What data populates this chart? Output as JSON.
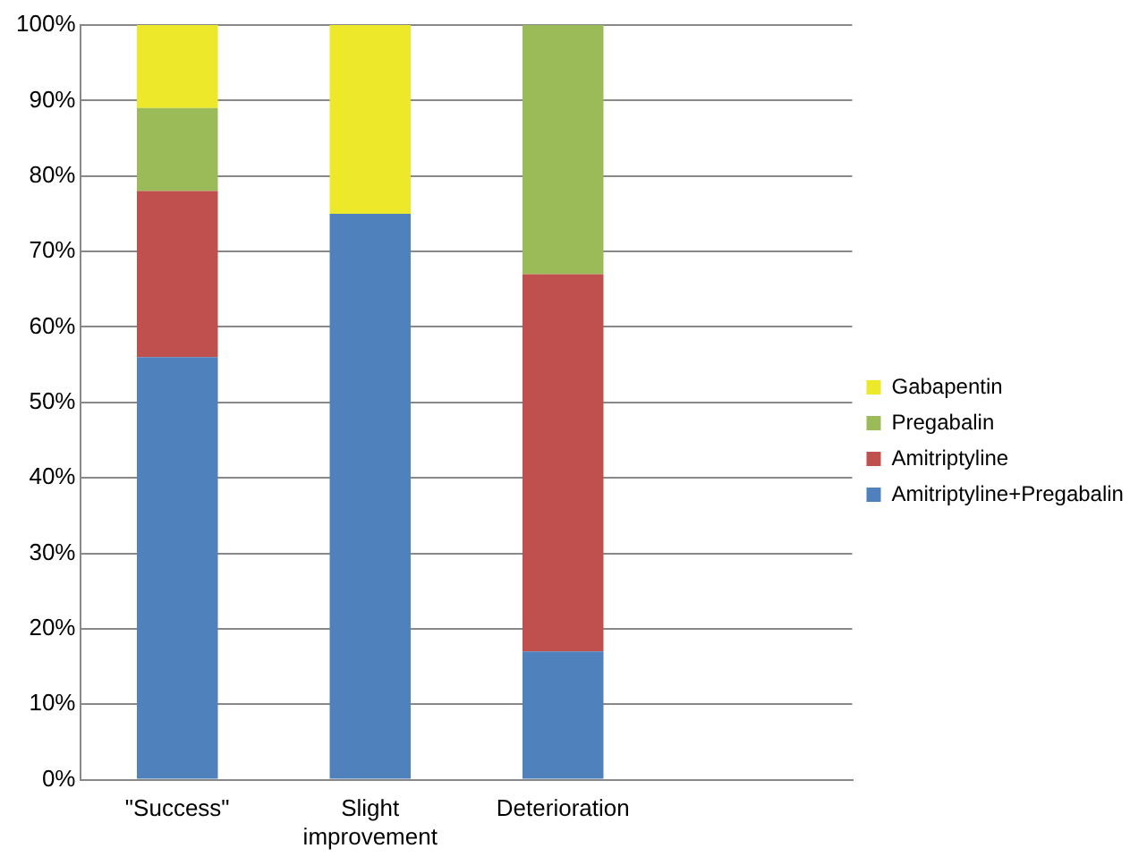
{
  "chart_data": {
    "type": "bar",
    "stacked": true,
    "categories": [
      "\"Success\"",
      "Slight improvement",
      "Deterioration",
      null
    ],
    "series": [
      {
        "name": "Amitriptyline+Pregabalin",
        "color": "#4f81bd",
        "values": [
          56,
          75,
          17,
          null
        ]
      },
      {
        "name": "Amitriptyline",
        "color": "#c0504d",
        "values": [
          22,
          null,
          50,
          null
        ]
      },
      {
        "name": "Pregabalin",
        "color": "#9bbb59",
        "values": [
          11,
          null,
          33,
          null
        ]
      },
      {
        "name": "Gabapentin",
        "color": "#eee82a",
        "values": [
          11,
          25,
          null,
          null
        ]
      }
    ],
    "ylim": [
      0,
      100
    ],
    "yticks": [
      {
        "value": 0,
        "label": "0%"
      },
      {
        "value": 10,
        "label": "10%"
      },
      {
        "value": 20,
        "label": "20%"
      },
      {
        "value": 30,
        "label": "30%"
      },
      {
        "value": 40,
        "label": "40%"
      },
      {
        "value": 50,
        "label": "50%"
      },
      {
        "value": 60,
        "label": "60%"
      },
      {
        "value": 70,
        "label": "70%"
      },
      {
        "value": 80,
        "label": "80%"
      },
      {
        "value": 90,
        "label": "90%"
      },
      {
        "value": 100,
        "label": "100%"
      }
    ],
    "grid": "y",
    "legend": "right"
  }
}
